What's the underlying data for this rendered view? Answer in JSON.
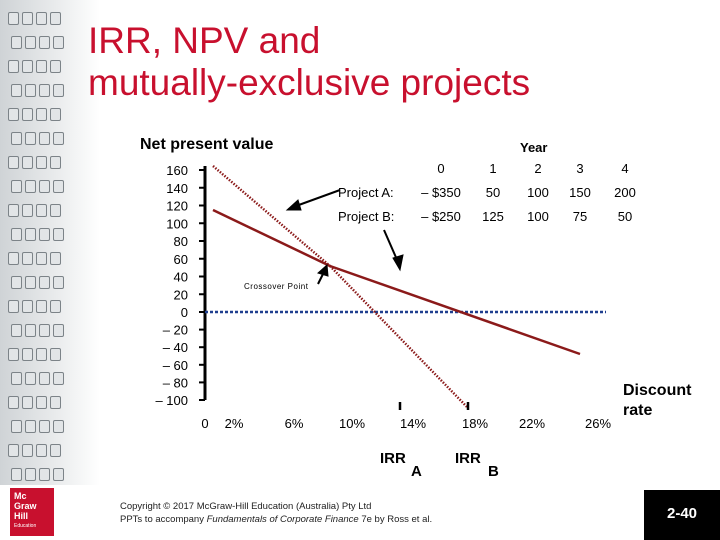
{
  "slide": {
    "title_line1": "IRR, NPV and",
    "title_line2": "mutually-exclusive projects",
    "footer_line1": "Copyright © 2017 McGraw-Hill Education (Australia) Pty Ltd",
    "footer_line2_prefix": "PPTs to accompany ",
    "footer_line2_book": "Fundamentals of Corporate Finance",
    "footer_line2_suffix": " 7e by Ross et al.",
    "page_number": "2-40",
    "logo_lines": [
      "Mc",
      "Graw",
      "Hill"
    ],
    "logo_sub": "Education",
    "colors": {
      "title": "#c8102e",
      "line": "#8b1a1a",
      "axis": "#000000",
      "zero_line": "#1f3f8f",
      "logo": "#c8102e"
    }
  },
  "chart_data": {
    "type": "line",
    "ylabel": "Net present value",
    "xlabel": "Discount rate",
    "y_ticks": [
      160,
      140,
      120,
      100,
      80,
      60,
      40,
      20,
      0,
      -20,
      -40,
      -60,
      -80,
      -100
    ],
    "y_tick_labels": [
      "160",
      "140",
      "120",
      "100",
      "80",
      "60",
      "40",
      "20",
      "0",
      "– 20",
      "– 40",
      "– 60",
      "– 80",
      "– 100"
    ],
    "x_ticks": [
      0,
      2,
      6,
      10,
      14,
      18,
      22,
      26
    ],
    "x_tick_labels": [
      "0",
      "2%",
      "6%",
      "10%",
      "14%",
      "18%",
      "22%",
      "26%"
    ],
    "ylim": [
      -100,
      160
    ],
    "series": [
      {
        "name": "Project A",
        "x": [
          0,
          18
        ],
        "y": [
          160,
          -5
        ]
      },
      {
        "name": "Project B",
        "x": [
          0,
          16.5
        ],
        "y": [
          135,
          -100
        ]
      }
    ],
    "crossover_label": "Crossover Point",
    "irr_labels": [
      {
        "main": "IRR",
        "sub": "A",
        "at_x": 14
      },
      {
        "main": "IRR",
        "sub": "B",
        "at_x": 18
      }
    ],
    "cashflow_table": {
      "header": "Year",
      "columns": [
        "0",
        "1",
        "2",
        "3",
        "4"
      ],
      "rows": [
        {
          "label": "Project A:",
          "values": [
            "– $350",
            "50",
            "100",
            "150",
            "200"
          ]
        },
        {
          "label": "Project B:",
          "values": [
            "– $250",
            "125",
            "100",
            "75",
            "50"
          ]
        }
      ]
    }
  }
}
